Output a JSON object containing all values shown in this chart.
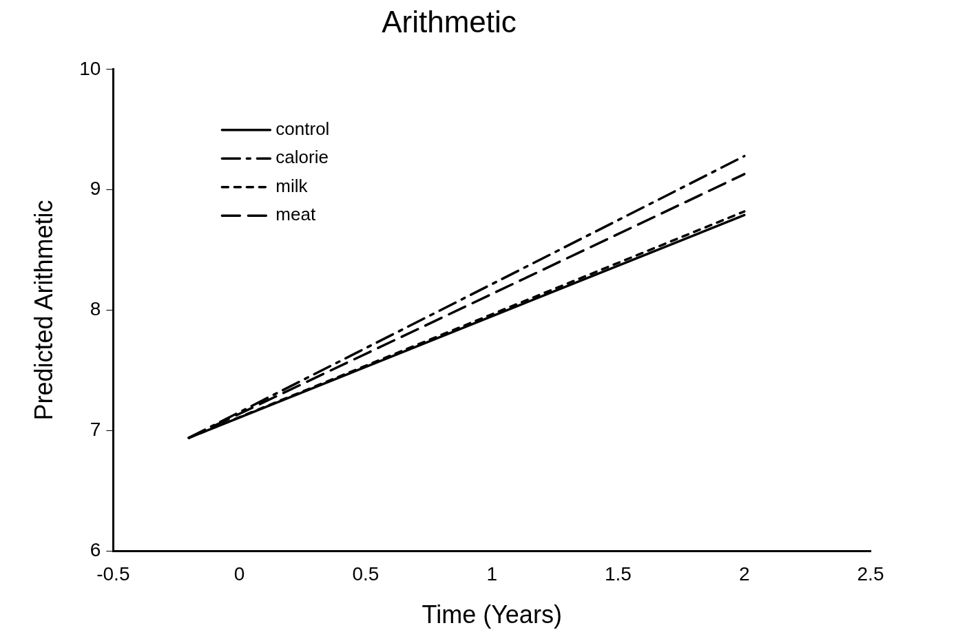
{
  "chart_data": {
    "type": "line",
    "title": "Arithmetic",
    "xlabel": "Time (Years)",
    "ylabel": "Predicted Arithmetic",
    "x": [
      -0.2,
      2
    ],
    "series": [
      {
        "name": "control",
        "color": "#000000",
        "line_style": "solid",
        "values": [
          6.94,
          8.79
        ]
      },
      {
        "name": "calorie",
        "color": "#000000",
        "line_style": "dashdot",
        "values": [
          6.94,
          9.28
        ]
      },
      {
        "name": "milk",
        "color": "#000000",
        "line_style": "dotted",
        "values": [
          6.94,
          8.82
        ]
      },
      {
        "name": "meat",
        "color": "#000000",
        "line_style": "dashed",
        "values": [
          6.94,
          9.13
        ]
      }
    ],
    "xlim": [
      -0.5,
      2.5
    ],
    "xticks": [
      -0.5,
      0,
      0.5,
      1,
      1.5,
      2,
      2.5
    ],
    "ylim": [
      6,
      10
    ],
    "yticks": [
      6,
      7,
      8,
      9,
      10
    ],
    "grid": false,
    "legend": "top left",
    "marker": "none"
  }
}
